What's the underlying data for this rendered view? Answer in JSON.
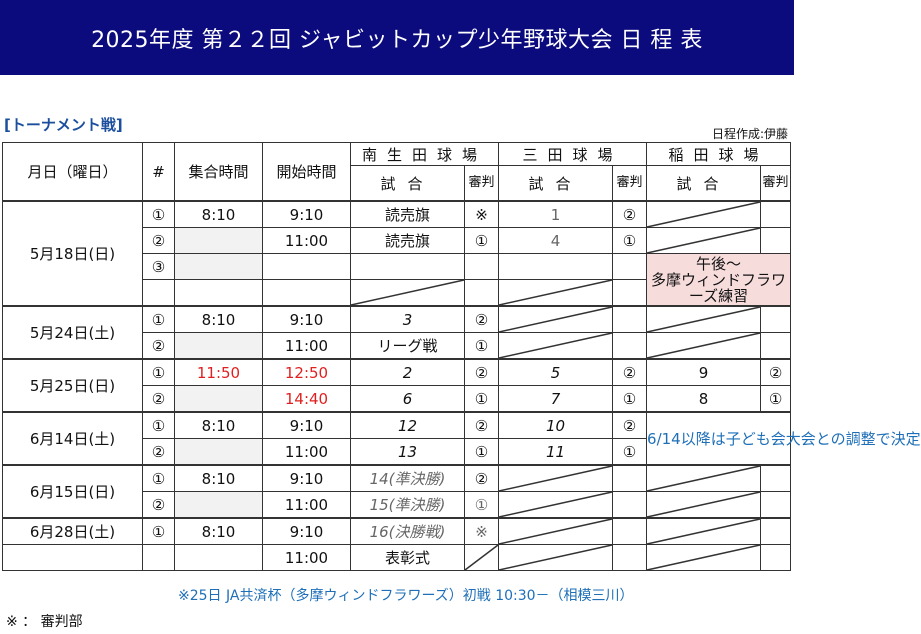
{
  "header": {
    "title": "2025年度 第２２回 ジャビットカップ少年野球大会 日 程 表"
  },
  "section_label": "[トーナメント戦]",
  "creator": "日程作成:伊藤",
  "columns": {
    "date": "月日（曜日）",
    "num": "#",
    "gather": "集合時間",
    "start": "開始時間",
    "venue1": "南生田球場",
    "venue2": "三田球場",
    "venue3": "稲田球場",
    "game": "試合",
    "ref": "審判"
  },
  "rows": {
    "d1": "5月18日(日)",
    "r1": {
      "num": "①",
      "gather": "8:10",
      "start": "9:10",
      "g1": "読売旗",
      "ref1": "※",
      "g2": "1",
      "ref2": "②"
    },
    "r2": {
      "num": "②",
      "start": "11:00",
      "g1": "読売旗",
      "ref1": "①",
      "g2": "4",
      "ref2": "①"
    },
    "r3": {
      "num": "③",
      "g3_note": "午後～\n多摩ウィンドフラワーズ練習"
    },
    "d2": "5月24日(土)",
    "r5": {
      "num": "①",
      "gather": "8:10",
      "start": "9:10",
      "g1": "3",
      "ref1": "②"
    },
    "r6": {
      "num": "②",
      "start": "11:00",
      "g1": "リーグ戦",
      "ref1": "①"
    },
    "d3": "5月25日(日)",
    "r7": {
      "num": "①",
      "gather": "11:50",
      "start": "12:50",
      "g1": "2",
      "ref1": "②",
      "g2": "5",
      "ref2": "②",
      "g3": "9",
      "ref3": "②"
    },
    "r8": {
      "num": "②",
      "start": "14:40",
      "g1": "6",
      "ref1": "①",
      "g2": "7",
      "ref2": "①",
      "g3": "8",
      "ref3": "①"
    },
    "d4": "6月14日(土)",
    "r9": {
      "num": "①",
      "gather": "8:10",
      "start": "9:10",
      "g1": "12",
      "ref1": "②",
      "g2": "10",
      "ref2": "②"
    },
    "r10": {
      "num": "②",
      "start": "11:00",
      "g1": "13",
      "ref1": "①",
      "g2": "11",
      "ref2": "①"
    },
    "note_0614": "6/14以降は子ども会大会との調整で決定",
    "d5": "6月15日(日)",
    "r11": {
      "num": "①",
      "gather": "8:10",
      "start": "9:10",
      "g1": "14(準決勝)",
      "ref1": "②"
    },
    "r12": {
      "num": "②",
      "start": "11:00",
      "g1": "15(準決勝)",
      "ref1": "①"
    },
    "d6": "6月28日(土)",
    "r13": {
      "num": "①",
      "gather": "8:10",
      "start": "9:10",
      "g1": "16(決勝戦)",
      "ref1": "※"
    },
    "r14": {
      "start": "11:00",
      "g1": "表彰式"
    }
  },
  "footer": {
    "note1": "※25日 JA共済杯（多摩ウィンドフラワーズ）初戦 10:30－（相模三川）",
    "note2": "※ ： 審判部"
  }
}
